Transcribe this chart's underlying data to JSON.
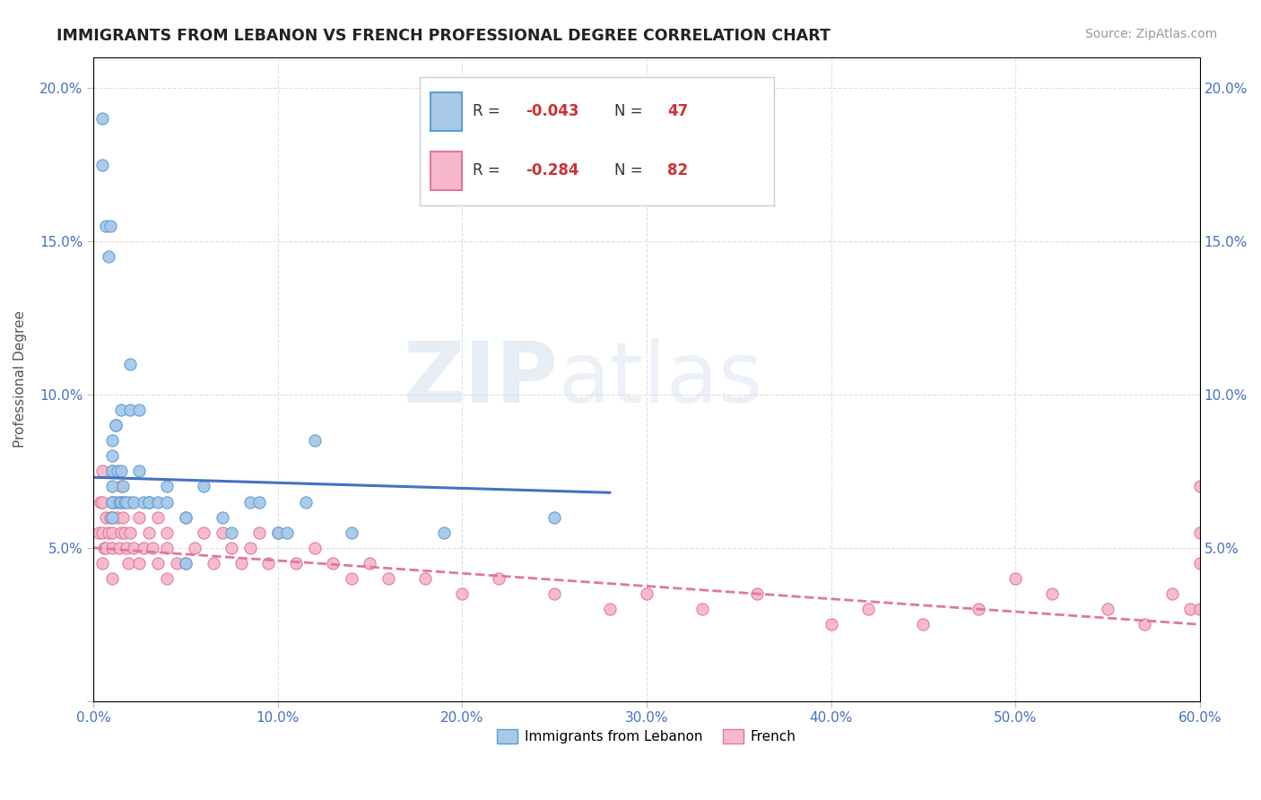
{
  "title": "IMMIGRANTS FROM LEBANON VS FRENCH PROFESSIONAL DEGREE CORRELATION CHART",
  "source_text": "Source: ZipAtlas.com",
  "ylabel": "Professional Degree",
  "xlim": [
    0.0,
    0.6
  ],
  "ylim": [
    0.0,
    0.21
  ],
  "xtick_vals": [
    0.0,
    0.1,
    0.2,
    0.3,
    0.4,
    0.5,
    0.6
  ],
  "ytick_vals": [
    0.0,
    0.05,
    0.1,
    0.15,
    0.2
  ],
  "lebanon_color": "#a8c8e8",
  "lebanon_edge_color": "#5a9fd4",
  "french_color": "#f8b8cc",
  "french_edge_color": "#e07898",
  "lebanon_line_color": "#4472c4",
  "french_line_color": "#e07898",
  "R_lebanon": "-0.043",
  "N_lebanon": "47",
  "R_french": "-0.284",
  "N_french": "82",
  "watermark_zip": "ZIP",
  "watermark_atlas": "atlas",
  "background_color": "#ffffff",
  "grid_color": "#e0e0e0",
  "tick_color": "#4472c4",
  "lebanon_scatter_x": [
    0.005,
    0.005,
    0.007,
    0.008,
    0.009,
    0.01,
    0.01,
    0.01,
    0.01,
    0.01,
    0.01,
    0.01,
    0.012,
    0.012,
    0.013,
    0.014,
    0.015,
    0.015,
    0.015,
    0.016,
    0.017,
    0.018,
    0.02,
    0.02,
    0.022,
    0.025,
    0.025,
    0.027,
    0.03,
    0.03,
    0.035,
    0.04,
    0.04,
    0.05,
    0.05,
    0.06,
    0.07,
    0.075,
    0.085,
    0.09,
    0.1,
    0.105,
    0.115,
    0.12,
    0.14,
    0.19,
    0.25
  ],
  "lebanon_scatter_y": [
    0.19,
    0.175,
    0.155,
    0.145,
    0.155,
    0.085,
    0.08,
    0.075,
    0.07,
    0.065,
    0.065,
    0.06,
    0.09,
    0.09,
    0.075,
    0.065,
    0.095,
    0.075,
    0.065,
    0.07,
    0.065,
    0.065,
    0.11,
    0.095,
    0.065,
    0.095,
    0.075,
    0.065,
    0.065,
    0.065,
    0.065,
    0.07,
    0.065,
    0.06,
    0.045,
    0.07,
    0.06,
    0.055,
    0.065,
    0.065,
    0.055,
    0.055,
    0.065,
    0.085,
    0.055,
    0.055,
    0.06
  ],
  "french_scatter_x": [
    0.003,
    0.004,
    0.005,
    0.005,
    0.005,
    0.005,
    0.006,
    0.007,
    0.007,
    0.008,
    0.009,
    0.01,
    0.01,
    0.01,
    0.01,
    0.01,
    0.01,
    0.012,
    0.013,
    0.014,
    0.015,
    0.015,
    0.015,
    0.016,
    0.017,
    0.018,
    0.019,
    0.02,
    0.02,
    0.022,
    0.025,
    0.025,
    0.027,
    0.03,
    0.03,
    0.032,
    0.035,
    0.035,
    0.04,
    0.04,
    0.04,
    0.045,
    0.05,
    0.05,
    0.055,
    0.06,
    0.065,
    0.07,
    0.075,
    0.08,
    0.085,
    0.09,
    0.095,
    0.1,
    0.11,
    0.12,
    0.13,
    0.14,
    0.15,
    0.16,
    0.18,
    0.2,
    0.22,
    0.25,
    0.28,
    0.3,
    0.33,
    0.36,
    0.4,
    0.42,
    0.45,
    0.48,
    0.5,
    0.52,
    0.55,
    0.57,
    0.585,
    0.595,
    0.6,
    0.6,
    0.6,
    0.6
  ],
  "french_scatter_y": [
    0.055,
    0.065,
    0.075,
    0.065,
    0.055,
    0.045,
    0.05,
    0.06,
    0.05,
    0.055,
    0.06,
    0.075,
    0.065,
    0.06,
    0.055,
    0.05,
    0.04,
    0.065,
    0.06,
    0.05,
    0.07,
    0.065,
    0.055,
    0.06,
    0.055,
    0.05,
    0.045,
    0.065,
    0.055,
    0.05,
    0.06,
    0.045,
    0.05,
    0.065,
    0.055,
    0.05,
    0.06,
    0.045,
    0.055,
    0.05,
    0.04,
    0.045,
    0.06,
    0.045,
    0.05,
    0.055,
    0.045,
    0.055,
    0.05,
    0.045,
    0.05,
    0.055,
    0.045,
    0.055,
    0.045,
    0.05,
    0.045,
    0.04,
    0.045,
    0.04,
    0.04,
    0.035,
    0.04,
    0.035,
    0.03,
    0.035,
    0.03,
    0.035,
    0.025,
    0.03,
    0.025,
    0.03,
    0.04,
    0.035,
    0.03,
    0.025,
    0.035,
    0.03,
    0.07,
    0.055,
    0.045,
    0.03
  ]
}
